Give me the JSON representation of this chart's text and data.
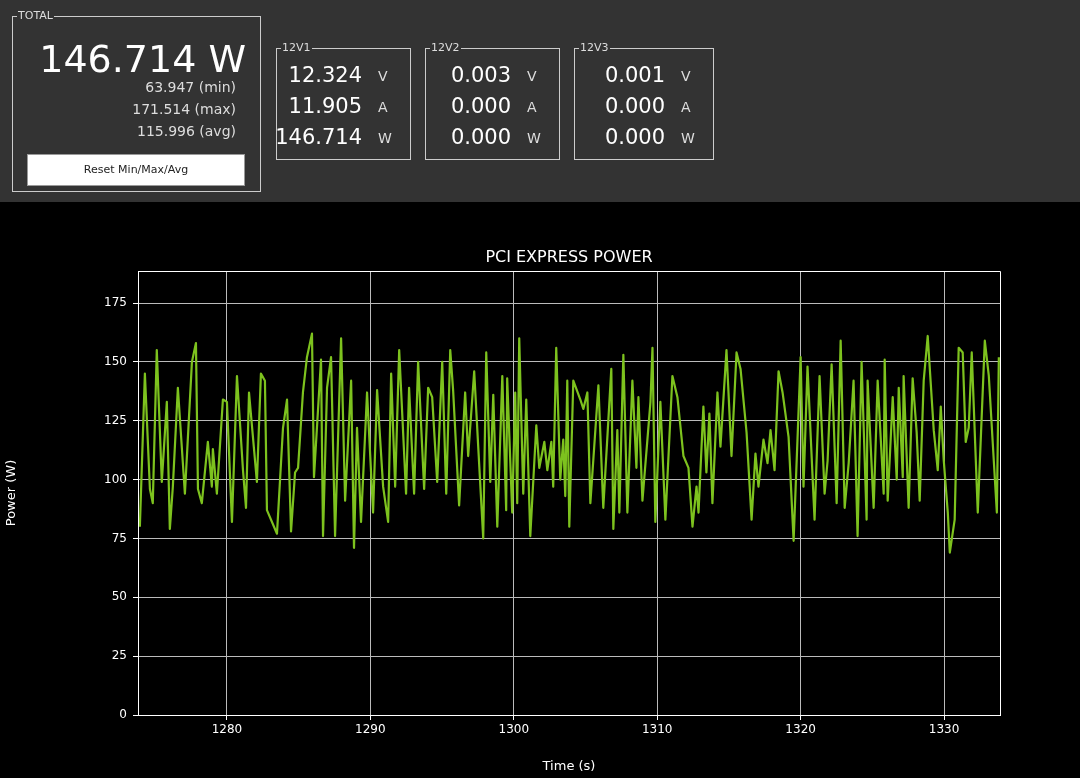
{
  "chart_data": [
    {
      "type": "other",
      "title": "TOTAL",
      "annotations": [
        "146.714 W",
        "63.947 (min)",
        "171.514 (max)",
        "115.996 (avg)",
        "Reset Min/Max/Avg"
      ]
    },
    {
      "type": "other",
      "title": "12V1",
      "annotations": [
        "12.324",
        "V",
        "11.905",
        "A",
        "146.714",
        "W"
      ]
    },
    {
      "type": "other",
      "title": "12V2",
      "annotations": [
        "0.003",
        "V",
        "0.000",
        "A",
        "0.000",
        "W"
      ]
    },
    {
      "type": "other",
      "title": "12V3",
      "annotations": [
        "0.001",
        "V",
        "0.000",
        "A",
        "0.000",
        "W"
      ]
    },
    {
      "type": "line",
      "title": "PCI EXPRESS POWER",
      "xlabel": "Time (s)",
      "ylabel": "Power (W)",
      "x": [
        1273.93,
        1274.28,
        1274.63,
        1274.83,
        1275.11,
        1275.46,
        1275.81,
        1276.02,
        1276.23,
        1276.58,
        1277.07,
        1277.56,
        1277.84,
        1277.98,
        1278.25,
        1278.67,
        1278.95,
        1279.02,
        1279.3,
        1279.72,
        1280.0,
        1280.35,
        1280.7,
        1281.12,
        1281.33,
        1281.54,
        1282.09,
        1282.37,
        1282.65,
        1282.79,
        1283.49,
        1283.91,
        1284.19,
        1284.47,
        1284.75,
        1284.96,
        1285.3,
        1285.58,
        1285.93,
        1286.07,
        1286.56,
        1286.7,
        1286.98,
        1287.26,
        1287.54,
        1287.96,
        1288.24,
        1288.66,
        1288.86,
        1289.07,
        1289.35,
        1289.77,
        1290.19,
        1290.47,
        1290.89,
        1291.24,
        1291.45,
        1291.73,
        1292.01,
        1292.49,
        1292.7,
        1293.05,
        1293.33,
        1293.75,
        1294.03,
        1294.31,
        1294.66,
        1295.01,
        1295.29,
        1295.57,
        1295.77,
        1296.19,
        1296.61,
        1296.82,
        1297.24,
        1297.52,
        1297.87,
        1298.08,
        1298.36,
        1298.57,
        1298.85,
        1299.2,
        1299.47,
        1299.54,
        1299.89,
        1300.1,
        1300.24,
        1300.38,
        1300.66,
        1300.87,
        1301.15,
        1301.57,
        1301.78,
        1302.13,
        1302.34,
        1302.62,
        1302.75,
        1302.96,
        1303.24,
        1303.45,
        1303.59,
        1303.73,
        1303.87,
        1304.15,
        1304.64,
        1304.85,
        1305.13,
        1305.34,
        1305.9,
        1306.24,
        1306.8,
        1306.94,
        1307.22,
        1307.36,
        1307.64,
        1307.92,
        1308.27,
        1308.55,
        1308.69,
        1308.97,
        1309.53,
        1309.67,
        1309.87,
        1310.22,
        1310.57,
        1311.06,
        1311.41,
        1311.83,
        1312.18,
        1312.46,
        1312.74,
        1312.88,
        1313.22,
        1313.43,
        1313.64,
        1313.85,
        1314.2,
        1314.41,
        1314.83,
        1315.18,
        1315.53,
        1315.81,
        1316.23,
        1316.58,
        1316.85,
        1317.06,
        1317.41,
        1317.69,
        1317.9,
        1318.18,
        1318.46,
        1318.74,
        1319.16,
        1319.51,
        1320.0,
        1320.2,
        1320.48,
        1320.97,
        1321.32,
        1321.67,
        1321.88,
        1322.16,
        1322.51,
        1322.79,
        1323.07,
        1323.35,
        1323.69,
        1323.97,
        1324.25,
        1324.6,
        1324.67,
        1325.09,
        1325.37,
        1325.79,
        1325.86,
        1326.07,
        1326.42,
        1326.7,
        1326.84,
        1327.12,
        1327.18,
        1327.53,
        1327.81,
        1328.09,
        1328.3,
        1328.58,
        1328.86,
        1329.28,
        1329.56,
        1329.77,
        1329.98,
        1330.26,
        1330.4,
        1330.74,
        1331.02,
        1331.3,
        1331.51,
        1331.72,
        1331.93,
        1332.35,
        1332.84,
        1333.12,
        1333.68,
        1333.82
      ],
      "series": [
        {
          "color": "#7dc21e",
          "values": [
            80,
            145,
            96,
            90,
            155,
            99,
            133,
            79,
            97,
            139,
            94,
            150,
            158,
            96,
            90,
            116,
            97,
            113,
            94,
            134,
            133,
            82,
            144,
            104,
            88,
            137,
            99,
            145,
            142,
            87,
            77,
            122,
            134,
            78,
            103,
            105,
            137,
            152,
            162,
            101,
            151,
            76,
            139,
            152,
            76,
            160,
            91,
            142,
            71,
            122,
            82,
            137,
            86,
            138,
            97,
            82,
            145,
            97,
            155,
            94,
            139,
            94,
            150,
            96,
            139,
            135,
            99,
            150,
            94,
            155,
            138,
            89,
            137,
            110,
            146,
            114,
            75,
            154,
            99,
            136,
            80,
            144,
            87,
            143,
            86,
            137,
            90,
            160,
            94,
            134,
            76,
            123,
            105,
            116,
            104,
            116,
            97,
            156,
            100,
            117,
            93,
            142,
            80,
            142,
            134,
            130,
            137,
            90,
            140,
            88,
            147,
            79,
            121,
            86,
            153,
            86,
            142,
            105,
            135,
            91,
            133,
            156,
            82,
            133,
            83,
            144,
            135,
            110,
            105,
            80,
            97,
            86,
            131,
            103,
            128,
            90,
            137,
            114,
            155,
            110,
            154,
            147,
            120,
            83,
            111,
            97,
            117,
            107,
            121,
            104,
            146,
            137,
            118,
            74,
            152,
            97,
            148,
            83,
            144,
            94,
            108,
            149,
            90,
            159,
            88,
            107,
            142,
            76,
            150,
            83,
            142,
            88,
            142,
            94,
            151,
            91,
            135,
            100,
            139,
            101,
            144,
            88,
            143,
            120,
            91,
            142,
            161,
            121,
            104,
            131,
            108,
            86,
            69,
            83,
            156,
            154,
            116,
            122,
            154,
            86,
            159,
            144,
            86,
            152
          ]
        }
      ],
      "xlim": [
        1273.8,
        1333.9
      ],
      "ylim": [
        0,
        188.6
      ],
      "xticks": [
        1280,
        1290,
        1300,
        1310,
        1320,
        1330
      ],
      "yticks": [
        0,
        25,
        50,
        75,
        100,
        125,
        150,
        175
      ],
      "grid": true,
      "legend": false,
      "marker": "none",
      "line_style": "solid"
    }
  ]
}
